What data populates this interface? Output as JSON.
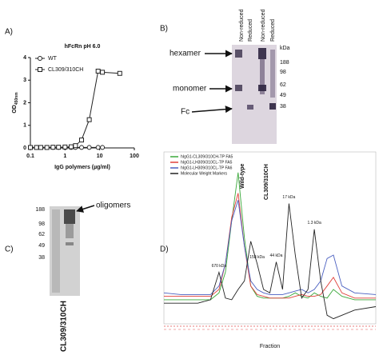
{
  "chart_data": [
    {
      "type": "line",
      "title": "hFcRn pH 6.0",
      "ylabel": "OD",
      "ylabel_sub": "450nm",
      "xlabel": "IgG polymers (µg/ml)",
      "log_x": true,
      "x": [
        0.1,
        0.15,
        0.2,
        0.3,
        0.45,
        0.65,
        1,
        1.5,
        2,
        3,
        5,
        9,
        12,
        38
      ],
      "xlim": [
        0.1,
        100
      ],
      "xticks": [
        0.1,
        1,
        10,
        100
      ],
      "ylim": [
        0,
        4
      ],
      "yticks": [
        0,
        1,
        2,
        3,
        4
      ],
      "legend": "top-left",
      "series": [
        {
          "name": "WT",
          "color": "#222222",
          "marker": "circle",
          "values": [
            0.02,
            0.02,
            0.02,
            0.02,
            0.02,
            0.02,
            0.02,
            0.02,
            0.02,
            0.02,
            0.02,
            0.02,
            0.02,
            null
          ]
        },
        {
          "name": "CL309/310CH",
          "color": "#222222",
          "marker": "square",
          "values": [
            0.02,
            0.02,
            0.02,
            0.02,
            0.03,
            0.03,
            0.04,
            0.05,
            0.1,
            0.35,
            1.25,
            3.4,
            3.35,
            3.3
          ]
        }
      ]
    },
    {
      "type": "line",
      "xlabel": "Fraction",
      "x": [
        0,
        8,
        16,
        22,
        26,
        29,
        32,
        35,
        38,
        41,
        44,
        47,
        50,
        53,
        56,
        59,
        62,
        65,
        68,
        71,
        74,
        77,
        80,
        84,
        90,
        100
      ],
      "xlim": [
        0,
        100
      ],
      "ylim": [
        0,
        100
      ],
      "legend": "top-left",
      "annotations": [
        "670 kDa",
        "158 kDa",
        "44 kDa",
        "17 kDa",
        "1.3 kDa"
      ],
      "series": [
        {
          "name": "hIgG1-CL309/310CH-TP FA5",
          "color": "#3aa83a",
          "values": [
            14,
            14,
            14,
            14,
            18,
            30,
            60,
            88,
            50,
            22,
            16,
            15,
            15,
            15,
            15,
            16,
            18,
            16,
            15,
            18,
            16,
            15,
            20,
            16,
            14,
            14
          ]
        },
        {
          "name": "hIgG1-LH309/310CL-TP FA5",
          "color": "#e0403a",
          "values": [
            16,
            16,
            16,
            16,
            20,
            35,
            62,
            76,
            45,
            22,
            17,
            16,
            15,
            15,
            15,
            15,
            16,
            17,
            16,
            16,
            17,
            22,
            27,
            18,
            15,
            15
          ]
        },
        {
          "name": "hIgG1-LH309/310CL-TP FA6",
          "color": "#4a5fc0",
          "values": [
            18,
            17,
            17,
            17,
            22,
            35,
            60,
            72,
            45,
            25,
            20,
            18,
            17,
            17,
            17,
            18,
            19,
            20,
            18,
            20,
            25,
            38,
            40,
            22,
            18,
            17
          ]
        },
        {
          "name": "Molecular Weight Markers",
          "color": "#222222",
          "values": [
            12,
            12,
            12,
            14,
            30,
            15,
            14,
            20,
            25,
            48,
            35,
            20,
            18,
            36,
            20,
            70,
            40,
            15,
            20,
            55,
            25,
            5,
            3,
            5,
            8,
            10
          ]
        }
      ]
    }
  ],
  "panel_labels": [
    "A)",
    "B)",
    "C)",
    "D)"
  ],
  "gel_b": {
    "column_headers": [
      "Non-reduced",
      "Reduced",
      "Non-reduced",
      "Reduced"
    ],
    "bands": [
      "hexamer",
      "monomer",
      "Fc"
    ],
    "marker_unit": "kDa",
    "markers": [
      "188",
      "98",
      "62",
      "49",
      "38"
    ],
    "lanes": [
      "Wild-type",
      "CL309/310CH"
    ]
  },
  "gel_c": {
    "markers": [
      "188",
      "98",
      "62",
      "49",
      "38"
    ],
    "annotation": "oligomers",
    "lane": "CL309/310CH"
  }
}
